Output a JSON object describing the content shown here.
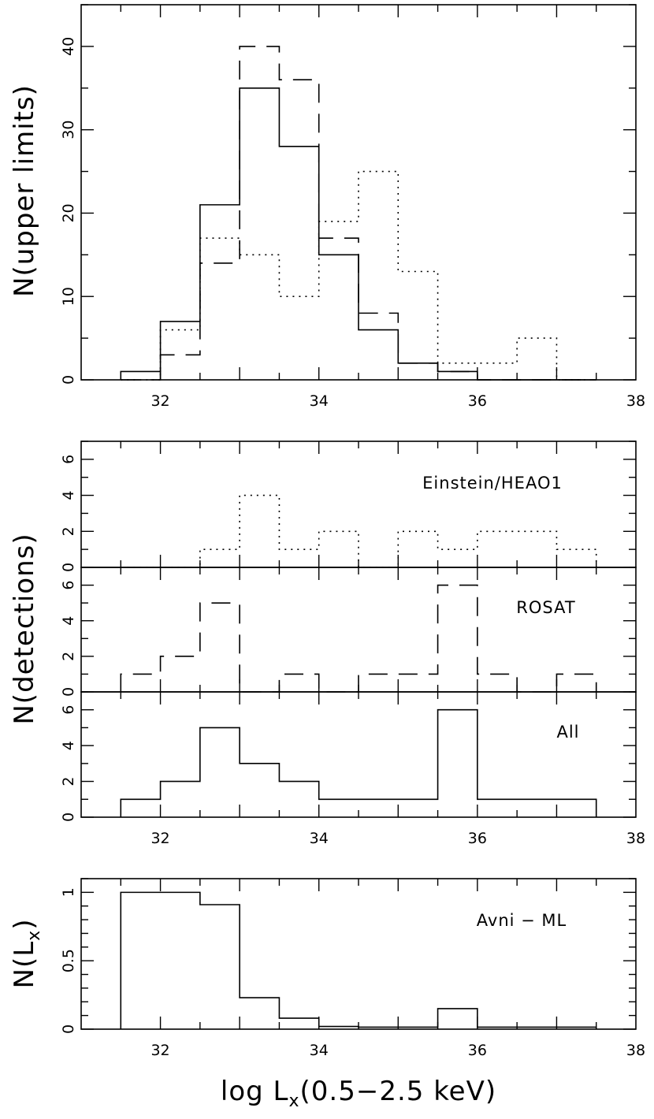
{
  "chart_data": [
    {
      "type": "histogram",
      "panel": "upper-limits",
      "ylabel": "N(upper limits)",
      "xlim": [
        31,
        38
      ],
      "ylim": [
        0,
        45
      ],
      "yticks": [
        0,
        10,
        20,
        30,
        40
      ],
      "xticks": [
        32,
        34,
        36,
        38
      ],
      "bin_edges": [
        31.5,
        32.0,
        32.5,
        33.0,
        33.5,
        34.0,
        34.5,
        35.0,
        35.5,
        36.0,
        36.5,
        37.0,
        37.5
      ],
      "series": [
        {
          "name": "solid",
          "style": "solid",
          "values": [
            1,
            7,
            21,
            35,
            28,
            15,
            6,
            2,
            1,
            0,
            0,
            0
          ]
        },
        {
          "name": "dashed",
          "style": "dashed",
          "values": [
            0,
            3,
            14,
            40,
            36,
            17,
            8,
            2,
            1,
            0,
            0,
            0
          ]
        },
        {
          "name": "dotted",
          "style": "dotted",
          "values": [
            0,
            6,
            17,
            15,
            10,
            19,
            25,
            13,
            2,
            2,
            5,
            0
          ]
        }
      ]
    },
    {
      "type": "histogram",
      "panel": "detections",
      "ylabel": "N(detections)",
      "xlim": [
        31,
        38
      ],
      "ylim": [
        0,
        7
      ],
      "yticks": [
        0,
        2,
        4,
        6
      ],
      "xticks": [
        32,
        34,
        36,
        38
      ],
      "bin_edges": [
        31.5,
        32.0,
        32.5,
        33.0,
        33.5,
        34.0,
        34.5,
        35.0,
        35.5,
        36.0,
        36.5,
        37.0,
        37.5
      ],
      "subpanels": [
        {
          "label": "Einstein/HEAO1",
          "style": "dotted",
          "values": [
            0,
            0,
            1,
            4,
            1,
            2,
            0,
            2,
            1,
            2,
            2,
            1
          ]
        },
        {
          "label": "ROSAT",
          "style": "dashed",
          "values": [
            1,
            2,
            5,
            0,
            1,
            0,
            1,
            1,
            6,
            1,
            0,
            1
          ]
        },
        {
          "label": "All",
          "style": "solid",
          "values": [
            1,
            2,
            5,
            3,
            2,
            1,
            1,
            1,
            6,
            1,
            1,
            1
          ]
        }
      ]
    },
    {
      "type": "line",
      "panel": "avni-ml",
      "ylabel": "N(L_x)",
      "label": "Avni − ML",
      "xlim": [
        31,
        38
      ],
      "ylim": [
        0,
        1.1
      ],
      "yticks": [
        0,
        0.5,
        1
      ],
      "ytick_labels": [
        "0",
        "0.5",
        "1"
      ],
      "xticks": [
        32,
        34,
        36,
        38
      ],
      "bin_edges": [
        31.5,
        32.0,
        32.5,
        33.0,
        33.5,
        34.0,
        34.5,
        35.0,
        35.5,
        36.0,
        36.5,
        37.0,
        37.5
      ],
      "values": [
        1.0,
        1.0,
        0.91,
        0.23,
        0.08,
        0.02,
        0.015,
        0.015,
        0.15,
        0.015,
        0.015,
        0.015
      ],
      "xlabel": "log L_x(0.5−2.5 keV)"
    }
  ],
  "labels": {
    "ylabel_upper": "N(upper limits)",
    "ylabel_det": "N(detections)",
    "ylabel_bottom_main": "N(L",
    "ylabel_bottom_sub": "x",
    "ylabel_bottom_close": ")",
    "panel_einstein": "Einstein/HEAO1",
    "panel_rosat": "ROSAT",
    "panel_all": "All",
    "panel_avni": "Avni − ML",
    "xlabel_main": "log L",
    "xlabel_sub": "x",
    "xlabel_rest": "(0.5−2.5 keV)"
  }
}
